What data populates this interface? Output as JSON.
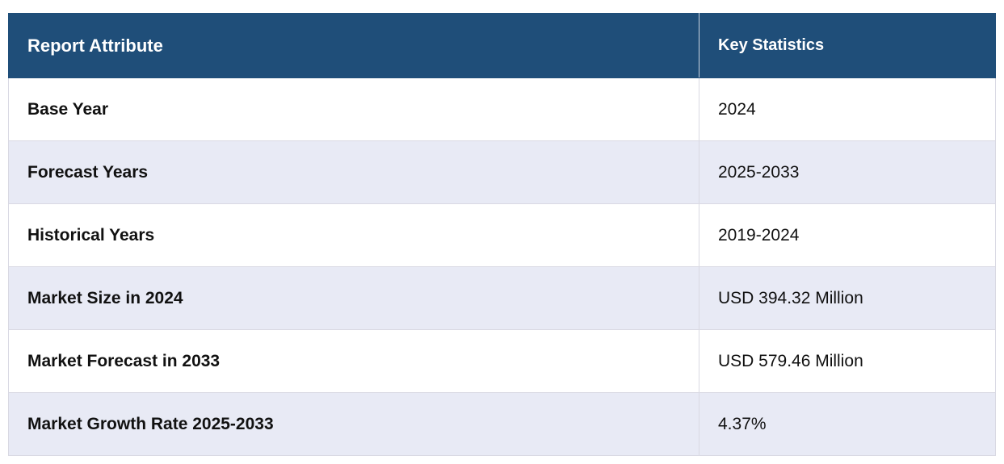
{
  "table": {
    "headers": [
      "Report Attribute",
      "Key Statistics"
    ],
    "rows": [
      [
        "Base Year",
        "2024"
      ],
      [
        "Forecast Years",
        "2025-2033"
      ],
      [
        "Historical Years",
        "2019-2024"
      ],
      [
        "Market Size in 2024",
        "USD 394.32 Million"
      ],
      [
        "Market Forecast in 2033",
        "USD 579.46 Million"
      ],
      [
        "Market Growth Rate 2025-2033",
        "4.37%"
      ]
    ]
  },
  "colors": {
    "header_bg": "#1f4e79",
    "header_text": "#ffffff",
    "stripe_bg": "#e8eaf5",
    "row_bg": "#ffffff"
  }
}
